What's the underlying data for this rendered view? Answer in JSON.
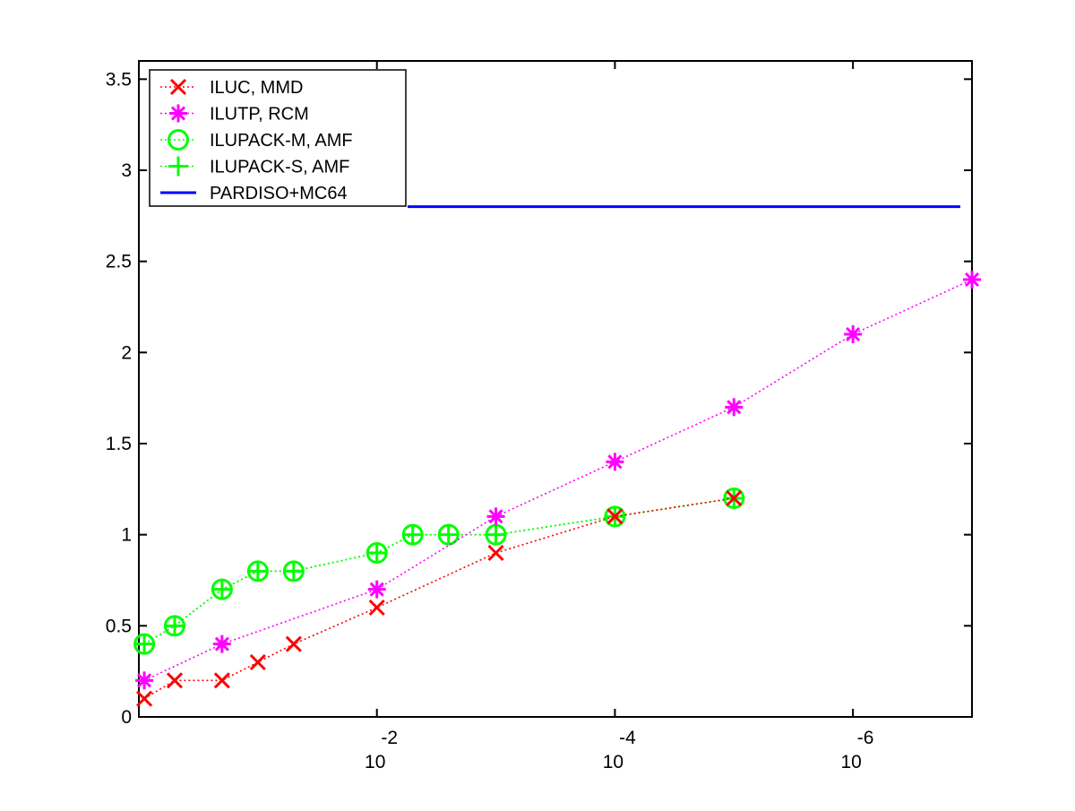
{
  "chart_data": {
    "type": "line",
    "title": "",
    "xlabel": "",
    "ylabel": "",
    "x_scale": "log",
    "x_reversed": true,
    "xlim": [
      1,
      1e-07
    ],
    "ylim": [
      0,
      3.5
    ],
    "y_axis_max": 3.6,
    "y_ticks": [
      0,
      0.5,
      1,
      1.5,
      2,
      2.5,
      3,
      3.5
    ],
    "y_tick_labels": [
      "0",
      "0.5",
      "1",
      "1.5",
      "2",
      "2.5",
      "3",
      "3.5"
    ],
    "x_ticks": [
      0.01,
      0.0001,
      1e-06
    ],
    "x_tick_labels": [
      {
        "base": "10",
        "exponent": "-2"
      },
      {
        "base": "10",
        "exponent": "-4"
      },
      {
        "base": "10",
        "exponent": "-6"
      }
    ],
    "grid": false,
    "legend_position": "top-left",
    "series": [
      {
        "name": "ILUC, MMD",
        "color": "#ff0000",
        "marker": "x",
        "line": "dotted",
        "x": [
          0.9,
          0.5,
          0.2,
          0.1,
          0.05,
          0.01,
          0.001,
          0.0001,
          1e-05
        ],
        "y": [
          0.1,
          0.2,
          0.2,
          0.3,
          0.4,
          0.6,
          0.9,
          1.1,
          1.2
        ]
      },
      {
        "name": "ILUTP, RCM",
        "color": "#ff00ff",
        "marker": "star",
        "line": "dotted",
        "x": [
          0.9,
          0.2,
          0.01,
          0.001,
          0.0001,
          1e-05,
          1e-06,
          1e-07
        ],
        "y": [
          0.2,
          0.4,
          0.7,
          1.1,
          1.4,
          1.7,
          2.1,
          2.4
        ]
      },
      {
        "name": "ILUPACK-M, AMF",
        "color": "#00ff00",
        "marker": "circle",
        "line": "dotted",
        "x": [
          0.9,
          0.5,
          0.2,
          0.1,
          0.05,
          0.01,
          0.005,
          0.0025,
          0.001,
          0.0001,
          1e-05
        ],
        "y": [
          0.4,
          0.5,
          0.7,
          0.8,
          0.8,
          0.9,
          1.0,
          1.0,
          1.0,
          1.1,
          1.2
        ]
      },
      {
        "name": "ILUPACK-S, AMF",
        "color": "#00ff00",
        "marker": "plus",
        "line": "dotted",
        "x": [
          0.9,
          0.5,
          0.2,
          0.1,
          0.05,
          0.01,
          0.005,
          0.0025,
          0.001,
          0.0001,
          1e-05
        ],
        "y": [
          0.4,
          0.5,
          0.7,
          0.8,
          0.8,
          0.9,
          1.0,
          1.0,
          1.0,
          1.1,
          1.2
        ]
      },
      {
        "name": "PARDISO+MC64",
        "color": "#0000ff",
        "marker": "none",
        "line": "solid",
        "constant_y": 2.8
      }
    ]
  }
}
